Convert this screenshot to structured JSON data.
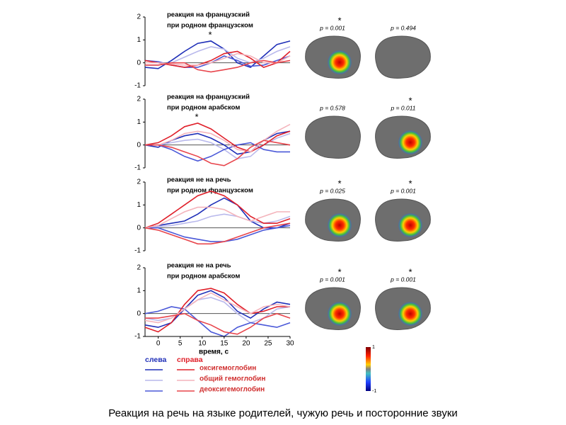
{
  "chart_data": [
    {
      "type": "line",
      "title": [
        "реакция на французский",
        "при родном французском"
      ],
      "annotation": "*",
      "x": [
        -3,
        0,
        3,
        6,
        9,
        12,
        15,
        18,
        21,
        24,
        27,
        30
      ],
      "xlim": [
        -3,
        30
      ],
      "ylim": [
        -1,
        2
      ],
      "yticks": [
        -1,
        0,
        1,
        2
      ],
      "series": [
        {
          "color": "#1f2fb8",
          "values": [
            -0.2,
            -0.25,
            0.1,
            0.5,
            0.85,
            0.95,
            0.6,
            0,
            -0.2,
            0.3,
            0.8,
            0.95
          ]
        },
        {
          "color": "#b9b9ec",
          "values": [
            -0.1,
            -0.1,
            0,
            0.25,
            0.5,
            0.7,
            0.6,
            0.2,
            0,
            0.2,
            0.5,
            0.7
          ]
        },
        {
          "color": "#4a58d8",
          "values": [
            0.1,
            0.05,
            -0.1,
            -0.2,
            -0.2,
            0,
            0.3,
            0.1,
            -0.15,
            -0.1,
            0.1,
            0.3
          ]
        },
        {
          "color": "#e0202a",
          "values": [
            0.1,
            0,
            -0.1,
            -0.2,
            -0.1,
            0.1,
            0.4,
            0.5,
            0.2,
            -0.2,
            0,
            0.5
          ]
        },
        {
          "color": "#f4b4bc",
          "values": [
            0,
            0,
            -0.05,
            -0.1,
            -0.1,
            0,
            0.2,
            0.4,
            0.3,
            0,
            0,
            0.3
          ]
        },
        {
          "color": "#e8454c",
          "values": [
            -0.1,
            -0.1,
            0,
            0,
            -0.3,
            -0.4,
            -0.3,
            -0.2,
            0,
            0.1,
            0,
            0.1
          ]
        }
      ]
    },
    {
      "type": "line",
      "title": [
        "реакция на французский",
        "при родном арабском"
      ],
      "annotation": "*",
      "x": [
        -3,
        0,
        3,
        6,
        9,
        12,
        15,
        18,
        21,
        24,
        27,
        30
      ],
      "xlim": [
        -3,
        30
      ],
      "ylim": [
        -1,
        2
      ],
      "yticks": [
        -1,
        0,
        1,
        2
      ],
      "series": [
        {
          "color": "#1f2fb8",
          "values": [
            0,
            -0.1,
            0.2,
            0.4,
            0.5,
            0.3,
            0,
            -0.4,
            -0.3,
            0.2,
            0.5,
            0.6
          ]
        },
        {
          "color": "#b9b9ec",
          "values": [
            0,
            0,
            0.1,
            0.2,
            0.25,
            0.1,
            -0.2,
            -0.6,
            -0.5,
            0,
            0.3,
            0.5
          ]
        },
        {
          "color": "#4a58d8",
          "values": [
            0,
            0,
            -0.2,
            -0.5,
            -0.7,
            -0.5,
            -0.2,
            0,
            0.1,
            -0.2,
            -0.3,
            -0.3
          ]
        },
        {
          "color": "#e0202a",
          "values": [
            0,
            0.1,
            0.4,
            0.8,
            0.95,
            0.7,
            0.3,
            -0.1,
            -0.3,
            0,
            0.4,
            0.6
          ]
        },
        {
          "color": "#f4b4bc",
          "values": [
            0,
            0,
            0.2,
            0.5,
            0.6,
            0.5,
            0.2,
            -0.2,
            -0.3,
            0.2,
            0.6,
            0.9
          ]
        },
        {
          "color": "#e8454c",
          "values": [
            0,
            0,
            -0.1,
            -0.3,
            -0.5,
            -0.8,
            -0.9,
            -0.6,
            -0.1,
            0.2,
            0.1,
            0
          ]
        }
      ]
    },
    {
      "type": "line",
      "title": [
        "реакция не на речь",
        "при родном французском"
      ],
      "x": [
        -3,
        0,
        3,
        6,
        9,
        12,
        15,
        18,
        21,
        24,
        27,
        30
      ],
      "xlim": [
        -3,
        30
      ],
      "ylim": [
        -1,
        2
      ],
      "yticks": [
        -1,
        0,
        1,
        2
      ],
      "series": [
        {
          "color": "#1f2fb8",
          "values": [
            0,
            0.1,
            0.2,
            0.3,
            0.6,
            1.0,
            1.3,
            1.0,
            0.3,
            0,
            0,
            0.2
          ]
        },
        {
          "color": "#b9b9ec",
          "values": [
            0,
            0.05,
            0.1,
            0.2,
            0.3,
            0.5,
            0.6,
            0.5,
            0.3,
            0.2,
            0.3,
            0.5
          ]
        },
        {
          "color": "#4a58d8",
          "values": [
            0,
            0,
            -0.2,
            -0.4,
            -0.5,
            -0.6,
            -0.6,
            -0.5,
            -0.3,
            -0.1,
            0,
            0.1
          ]
        },
        {
          "color": "#e0202a",
          "values": [
            0,
            0.2,
            0.6,
            1.0,
            1.4,
            1.6,
            1.4,
            1.0,
            0.5,
            0.2,
            0.2,
            0.4
          ]
        },
        {
          "color": "#f4b4bc",
          "values": [
            0,
            0.1,
            0.4,
            0.7,
            0.9,
            0.9,
            0.8,
            0.5,
            0.3,
            0.5,
            0.7,
            0.7
          ]
        },
        {
          "color": "#e8454c",
          "values": [
            0,
            -0.1,
            -0.3,
            -0.5,
            -0.7,
            -0.7,
            -0.6,
            -0.4,
            -0.2,
            0,
            0.1,
            0.2
          ]
        }
      ]
    },
    {
      "type": "line",
      "title": [
        "реакция не на речь",
        "при родном арабском"
      ],
      "x_label": "время, с",
      "x": [
        -3,
        0,
        3,
        6,
        9,
        12,
        15,
        18,
        21,
        24,
        27,
        30
      ],
      "xlim": [
        -3,
        30
      ],
      "xticks": [
        0,
        5,
        10,
        15,
        20,
        25,
        30
      ],
      "ylim": [
        -1,
        2
      ],
      "yticks": [
        -1,
        0,
        1,
        2
      ],
      "series": [
        {
          "color": "#1f2fb8",
          "values": [
            -0.5,
            -0.6,
            -0.4,
            0.2,
            0.8,
            1.0,
            0.7,
            0.1,
            -0.2,
            0.2,
            0.5,
            0.4
          ]
        },
        {
          "color": "#b9b9ec",
          "values": [
            -0.2,
            -0.3,
            -0.2,
            0.2,
            0.6,
            0.7,
            0.5,
            0,
            -0.4,
            -0.2,
            0.2,
            0.3
          ]
        },
        {
          "color": "#4a58d8",
          "values": [
            0,
            0.1,
            0.3,
            0.2,
            -0.3,
            -0.8,
            -1.0,
            -0.6,
            -0.4,
            -0.5,
            -0.6,
            -0.4
          ]
        },
        {
          "color": "#e0202a",
          "values": [
            -0.6,
            -0.8,
            -0.4,
            0.4,
            1.0,
            1.1,
            0.9,
            0.4,
            0,
            0.1,
            0.3,
            0.3
          ]
        },
        {
          "color": "#f4b4bc",
          "values": [
            -0.3,
            -0.4,
            -0.2,
            0.2,
            0.6,
            0.9,
            0.6,
            0.3,
            0,
            0.3,
            0.4,
            0.3
          ]
        },
        {
          "color": "#e8454c",
          "values": [
            -0.2,
            -0.2,
            -0.1,
            0,
            -0.3,
            -0.5,
            -0.8,
            -0.9,
            -0.6,
            -0.2,
            0,
            -0.2
          ]
        }
      ]
    }
  ],
  "legend": {
    "sides": [
      {
        "label": "слева",
        "colors": [
          "#1f2fb8",
          "#b9b9ec",
          "#4a58d8"
        ]
      },
      {
        "label": "справа",
        "colors": [
          "#e0202a",
          "#f4b4bc",
          "#e8454c"
        ]
      }
    ],
    "measures": [
      "оксигемоглобин",
      "общий гемоглобин",
      "деоксигемоглобин"
    ]
  },
  "brain_maps": [
    [
      {
        "p": "p = 0.001",
        "star": "*"
      },
      {
        "p": "p = 0.494"
      }
    ],
    [
      {
        "p": "p = 0.578"
      },
      {
        "p": "p = 0.011",
        "star": "*"
      }
    ],
    [
      {
        "p": "p = 0.025",
        "star": "*"
      },
      {
        "p": "p = 0.001",
        "star": "*"
      }
    ],
    [
      {
        "p": "p = 0.001",
        "star": "*"
      },
      {
        "p": "p = 0.001",
        "star": "*"
      }
    ]
  ],
  "colorbar": {
    "ticks": [
      1,
      -1
    ]
  },
  "caption": "Реакция на речь на языке родителей, чужую речь и посторонние звуки"
}
